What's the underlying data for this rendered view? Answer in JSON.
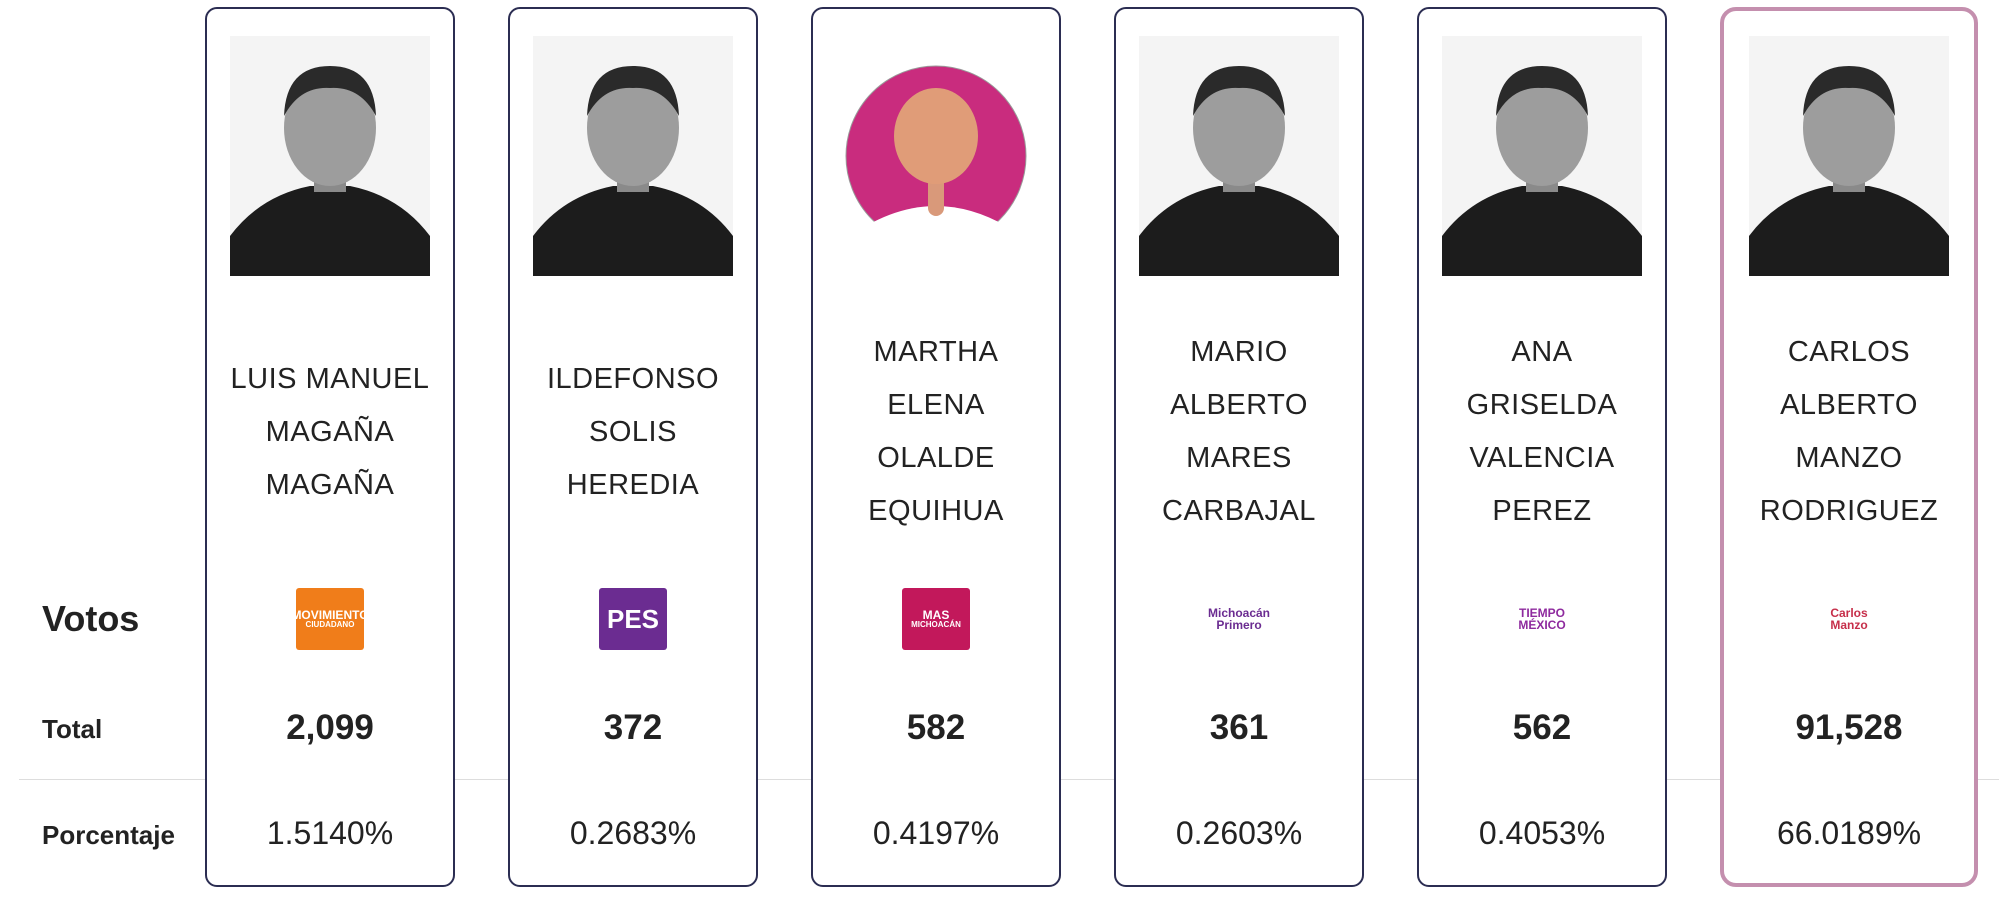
{
  "row_labels": {
    "votes": "Votos",
    "total": "Total",
    "percentage": "Porcentaje"
  },
  "candidates": [
    {
      "name_lines": [
        "LUIS MANUEL",
        "MAGAÑA",
        "MAGAÑA"
      ],
      "logo": {
        "lines": [
          "MOVIMIENTO",
          "CIUDADANO"
        ],
        "color": "#f07d1a",
        "style": "box"
      },
      "total": "2,099",
      "percentage": "1.5140%",
      "photo": "portrait",
      "highlighted": false
    },
    {
      "name_lines": [
        "ILDEFONSO",
        "SOLIS",
        "HEREDIA"
      ],
      "logo": {
        "lines": [
          "PES"
        ],
        "color": "#6b2c91",
        "style": "box"
      },
      "total": "372",
      "percentage": "0.2683%",
      "photo": "portrait",
      "highlighted": false
    },
    {
      "name_lines": [
        "MARTHA",
        "ELENA",
        "OLALDE",
        "EQUIHUA"
      ],
      "logo": {
        "lines": [
          "MAS",
          "MICHOACÁN"
        ],
        "color": "#c2185b",
        "style": "box"
      },
      "total": "582",
      "percentage": "0.4197%",
      "photo": "avatar",
      "highlighted": false
    },
    {
      "name_lines": [
        "MARIO",
        "ALBERTO",
        "MARES",
        "CARBAJAL"
      ],
      "logo": {
        "lines": [
          "Michoacán",
          "Primero"
        ],
        "color": "#6b2c91",
        "style": "text"
      },
      "total": "361",
      "percentage": "0.2603%",
      "photo": "portrait",
      "highlighted": false
    },
    {
      "name_lines": [
        "ANA",
        "GRISELDA",
        "VALENCIA",
        "PEREZ"
      ],
      "logo": {
        "lines": [
          "TIEMPO",
          "MÉXICO"
        ],
        "color": "#8e2a9e",
        "style": "text"
      },
      "total": "562",
      "percentage": "0.4053%",
      "photo": "portrait",
      "highlighted": false
    },
    {
      "name_lines": [
        "CARLOS",
        "ALBERTO",
        "MANZO",
        "RODRIGUEZ"
      ],
      "logo": {
        "lines": [
          "Carlos",
          "Manzo"
        ],
        "color": "#c62f4a",
        "style": "text"
      },
      "total": "91,528",
      "percentage": "66.0189%",
      "photo": "portrait",
      "highlighted": true
    }
  ]
}
